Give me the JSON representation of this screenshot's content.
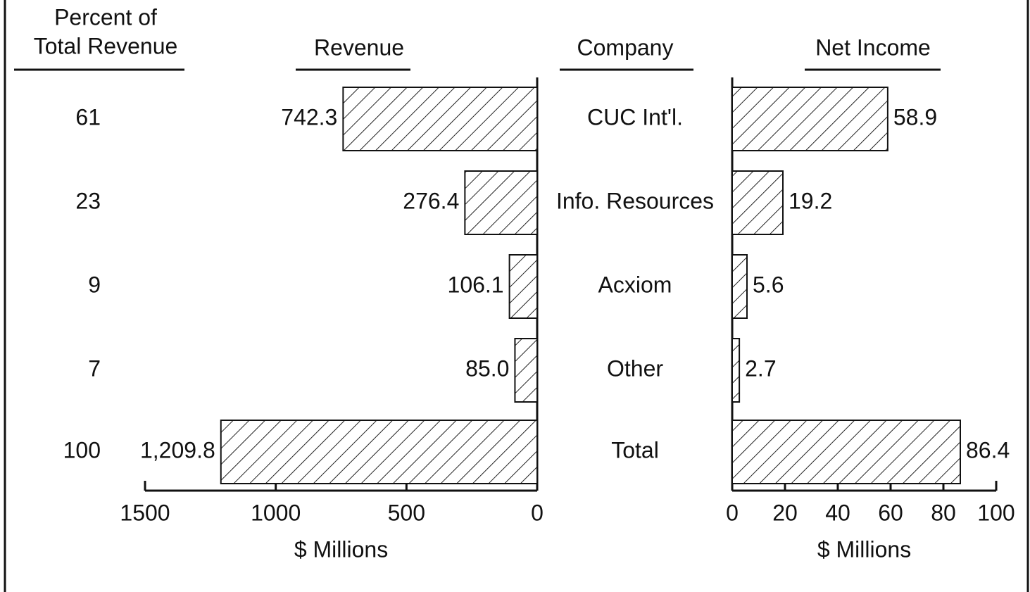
{
  "percent_of_total_revenue": {
    "title": [
      "Percent of",
      "Total Revenue"
    ],
    "values": [
      61,
      23,
      9,
      7,
      100
    ]
  },
  "chart_data": [
    {
      "type": "bar",
      "orientation": "horizontal",
      "title": "Revenue",
      "category_title": "Company",
      "categories": [
        "CUC Int'l.",
        "Info. Resources",
        "Acxiom",
        "Other",
        "Total"
      ],
      "values": [
        742.3,
        276.4,
        106.1,
        85.0,
        1209.8
      ],
      "value_labels": [
        "742.3",
        "276.4",
        "106.1",
        "85.0",
        "1,209.8"
      ],
      "xlim": [
        0,
        1500
      ],
      "xticks": [
        0,
        500,
        1000,
        1500
      ],
      "x_reversed": true,
      "xlabel": "$ Millions",
      "color": "#ffffff",
      "pattern": "hatch"
    },
    {
      "type": "bar",
      "orientation": "horizontal",
      "title": "Net Income",
      "values": [
        58.9,
        19.2,
        5.6,
        2.7,
        86.4
      ],
      "xlim": [
        0,
        100
      ],
      "xticks": [
        0,
        20,
        40,
        60,
        80,
        100
      ],
      "x_reversed": false,
      "xlabel": "$ Millions",
      "color": "#ffffff",
      "pattern": "hatch"
    }
  ]
}
